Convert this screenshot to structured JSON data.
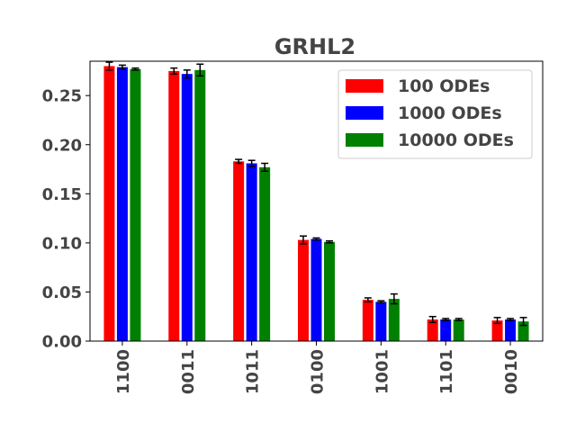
{
  "chart_data": {
    "type": "bar",
    "title": "GRHL2",
    "xlabel": "",
    "ylabel": "",
    "ylim": [
      0,
      0.285
    ],
    "yticks": [
      "0.00",
      "0.05",
      "0.10",
      "0.15",
      "0.20",
      "0.25"
    ],
    "categories": [
      "1100",
      "0011",
      "1011",
      "0100",
      "1001",
      "1101",
      "0010"
    ],
    "series": [
      {
        "name": "100 ODEs",
        "color": "#ff0000",
        "values": [
          0.28,
          0.275,
          0.183,
          0.103,
          0.042,
          0.022,
          0.021
        ],
        "errors": [
          0.004,
          0.003,
          0.002,
          0.004,
          0.002,
          0.003,
          0.003
        ]
      },
      {
        "name": "1000 ODEs",
        "color": "#0000ff",
        "values": [
          0.279,
          0.272,
          0.181,
          0.104,
          0.04,
          0.022,
          0.022
        ],
        "errors": [
          0.002,
          0.004,
          0.003,
          0.001,
          0.001,
          0.001,
          0.001
        ]
      },
      {
        "name": "10000 ODEs",
        "color": "#008000",
        "values": [
          0.277,
          0.276,
          0.177,
          0.101,
          0.043,
          0.022,
          0.02
        ],
        "errors": [
          0.001,
          0.006,
          0.004,
          0.001,
          0.005,
          0.001,
          0.004
        ]
      }
    ],
    "grid": false,
    "legend_position": "top-right"
  }
}
